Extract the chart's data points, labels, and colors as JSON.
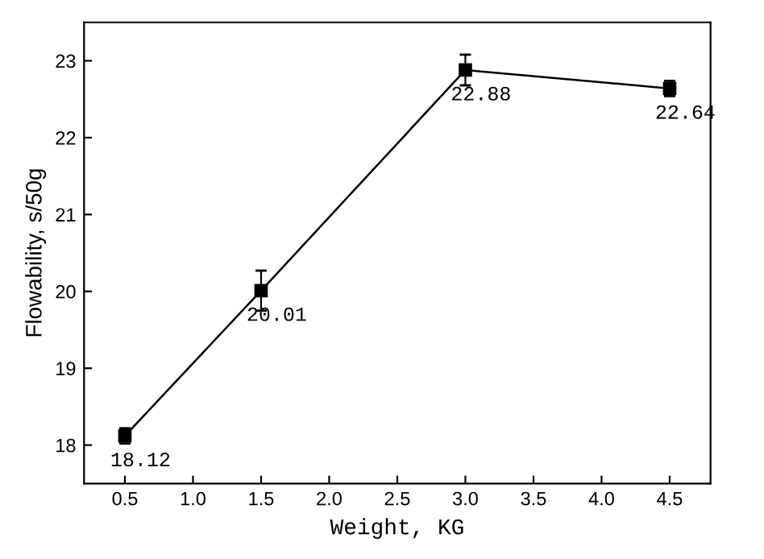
{
  "chart_data": {
    "type": "line",
    "xlabel": "Weight, KG",
    "ylabel": "Flowability, s/50g",
    "x": [
      0.5,
      1.5,
      3.0,
      4.5
    ],
    "series": [
      {
        "color": "#000000",
        "values": [
          18.12,
          20.01,
          22.88,
          22.64
        ],
        "errors": [
          0.1,
          0.26,
          0.2,
          0.1
        ]
      }
    ],
    "xlim": [
      0.2,
      4.8
    ],
    "xticks": [
      0.5,
      {
        "value": 1,
        "label": "1.0"
      },
      1.5,
      {
        "value": 2,
        "label": "2.0"
      },
      2.5,
      {
        "value": 3,
        "label": "3.0"
      },
      3.5,
      {
        "value": 4,
        "label": "4.0"
      },
      4.5
    ],
    "ylim": [
      17.5,
      23.5
    ],
    "yticks": [
      18,
      19,
      20,
      21,
      22,
      23
    ],
    "data_labels": true,
    "marker": "square",
    "line_style": "solid",
    "grid": false,
    "legend": false
  }
}
